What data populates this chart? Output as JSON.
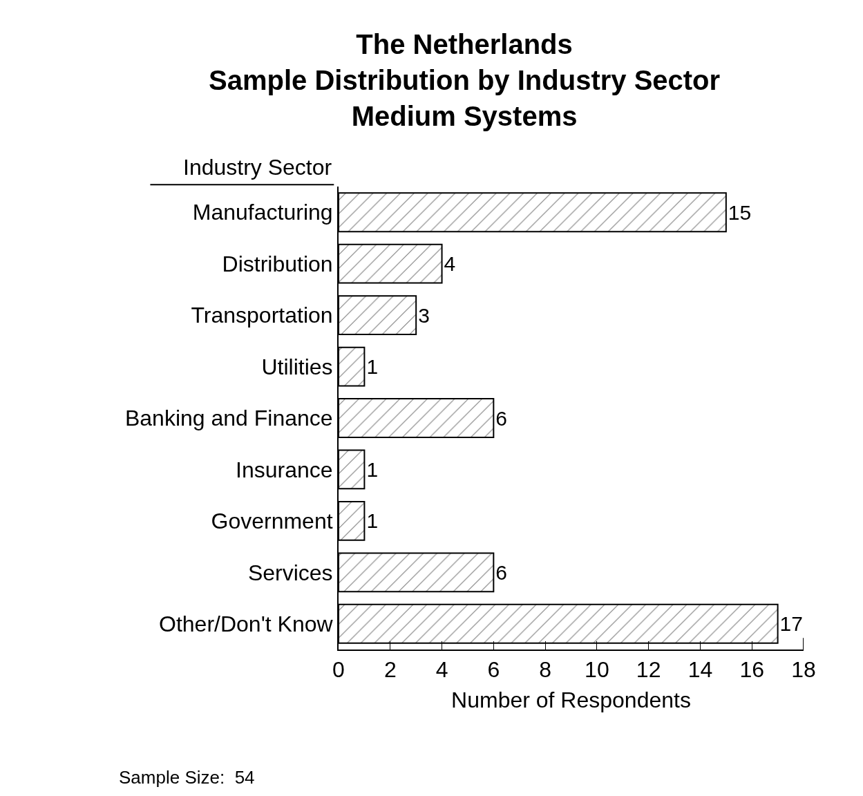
{
  "chart_data": {
    "type": "bar",
    "orientation": "horizontal",
    "title": "The Netherlands\nSample Distribution by Industry Sector\nMedium Systems",
    "ylabel": "Industry Sector",
    "xlabel": "Number of Respondents",
    "categories": [
      "Manufacturing",
      "Distribution",
      "Transportation",
      "Utilities",
      "Banking and Finance",
      "Insurance",
      "Government",
      "Services",
      "Other/Don't Know"
    ],
    "values": [
      15,
      4,
      3,
      1,
      6,
      1,
      1,
      6,
      17
    ],
    "color": "#000000",
    "xlim": [
      0,
      18
    ],
    "xticks": [
      0,
      2,
      4,
      6,
      8,
      10,
      12,
      14,
      16,
      18
    ],
    "data_labels": true,
    "legend": false,
    "annotations": [
      "Sample Size:  54"
    ]
  }
}
